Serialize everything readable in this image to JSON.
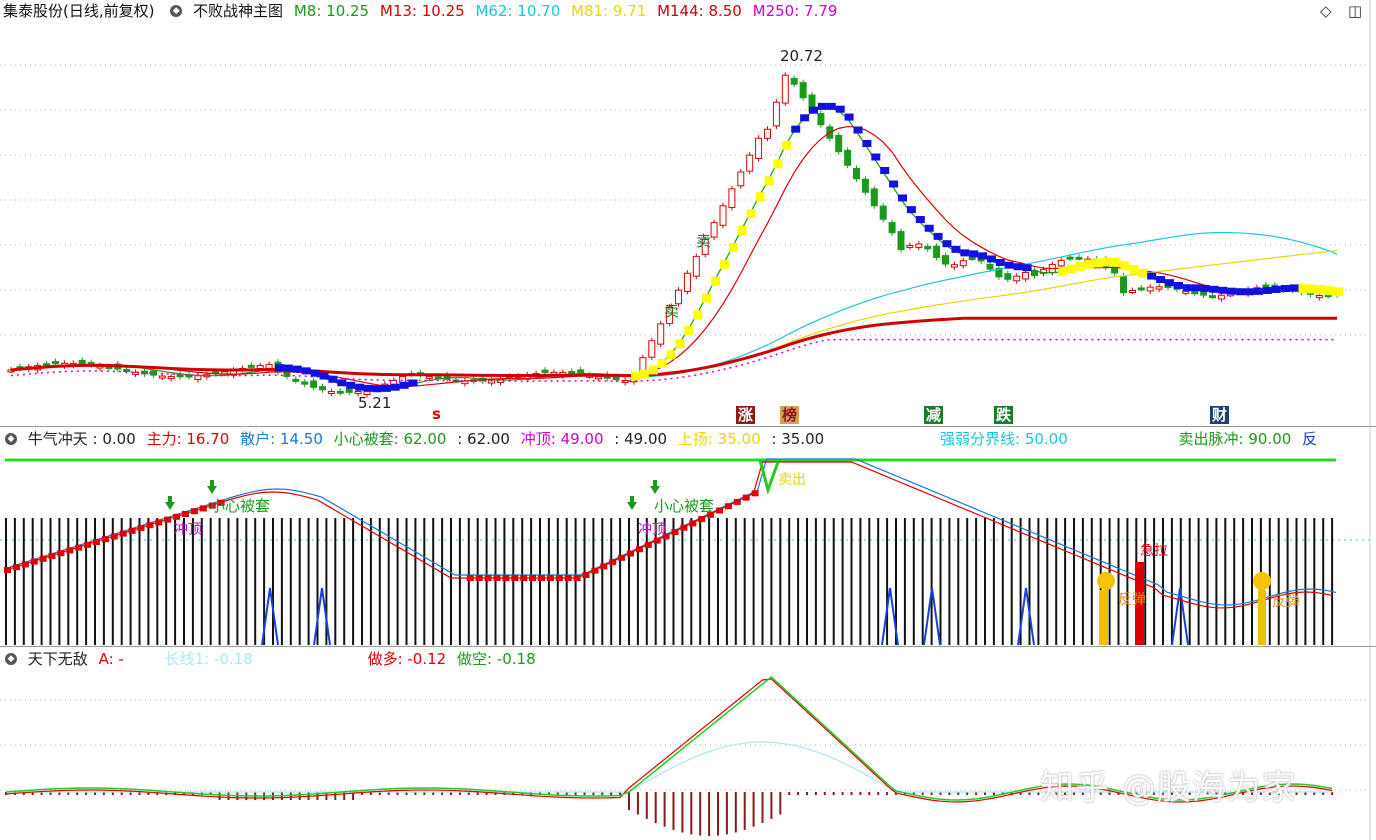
{
  "main_header": {
    "stock": "集泰股份(日线,前复权)",
    "indicator": "不败战神主图",
    "mas": [
      {
        "label": "M8: 10.25",
        "color": "#1a9a1a"
      },
      {
        "label": "M13: 10.25",
        "color": "#e00000"
      },
      {
        "label": "M62: 10.70",
        "color": "#18c8d8"
      },
      {
        "label": "M81: 9.71",
        "color": "#e8d800"
      },
      {
        "label": "M144: 8.50",
        "color": "#d00000"
      },
      {
        "label": "M250: 7.79",
        "color": "#d000d0"
      }
    ]
  },
  "main_annotations": {
    "high": "20.72",
    "low": "5.21",
    "sell1": "卖",
    "sell2": "卖",
    "s_mark": "s"
  },
  "signals": [
    {
      "text": "涨",
      "color": "#ffffff",
      "bg": "#8b1a1a"
    },
    {
      "text": "榜",
      "color": "#8b1a1a",
      "bg": "#d9a05a"
    },
    {
      "text": "减",
      "color": "#ffffff",
      "bg": "#1f7a2b"
    },
    {
      "text": "跌",
      "color": "#ffffff",
      "bg": "#1f7a2b"
    },
    {
      "text": "财",
      "color": "#ffffff",
      "bg": "#1c3f7a"
    }
  ],
  "panel1_header": [
    {
      "label": "牛气冲天 : 0.00",
      "color": "#222222"
    },
    {
      "label": "主力: 16.70",
      "color": "#e00000"
    },
    {
      "label": "散户: 14.50",
      "color": "#1a78d8"
    },
    {
      "label": "小心被套: 62.00",
      "color": "#1a9a1a"
    },
    {
      "label": ": 62.00",
      "color": "#222222"
    },
    {
      "label": "冲顶: 49.00",
      "color": "#d000d0"
    },
    {
      "label": ": 49.00",
      "color": "#222222"
    },
    {
      "label": "上扬: 35.00",
      "color": "#e8d800"
    },
    {
      "label": ": 35.00",
      "color": "#222222"
    },
    {
      "label": "强弱分界线: 50.00",
      "color": "#18c8d8"
    },
    {
      "label": "卖出脉冲: 90.00",
      "color": "#1a9a1a"
    },
    {
      "label": "反",
      "color": "#1a3fd8"
    }
  ],
  "panel1_annotations": {
    "careful1": "小心被套",
    "careful2": "小心被套",
    "top1": "冲顶",
    "top2": "冲顶",
    "sell": "卖出",
    "rebound": "反弹",
    "rebound2": "反弹",
    "rally": "急拉"
  },
  "panel2_header": [
    {
      "label": "天下无敌",
      "color": "#222222"
    },
    {
      "label": "A: -",
      "color": "#e00000"
    },
    {
      "label": "长线1: -0.18",
      "color": "#a8e8f0"
    },
    {
      "label": "做多: -0.12",
      "color": "#e00000"
    },
    {
      "label": "做空: -0.18",
      "color": "#1a9a1a"
    }
  ],
  "watermark": "知乎 @股海为家",
  "colors": {
    "bull": "#e00000",
    "bear": "#1a9a1a",
    "up_band": "#ffff00",
    "down_band": "#1010e0"
  }
}
